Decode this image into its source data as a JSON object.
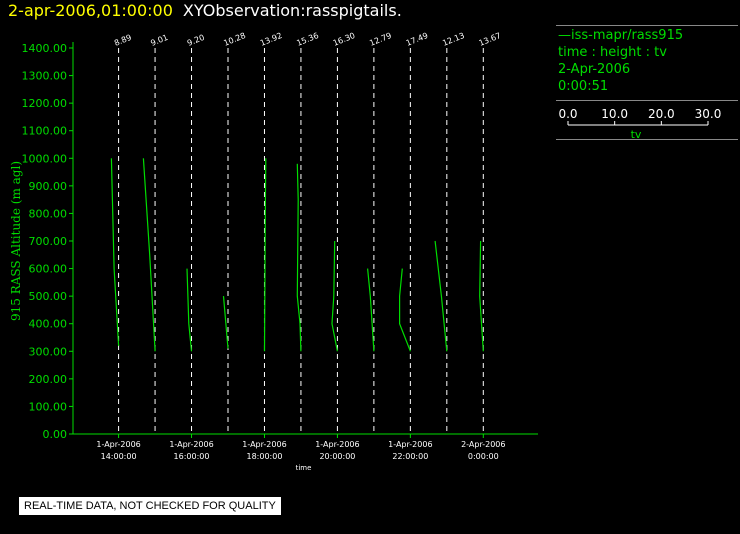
{
  "header": {
    "timestamp": "2-apr-2006,01:00:00",
    "title": "XYObservation:rasspigtails."
  },
  "legend": {
    "series": "—iss-mapr/rass915",
    "variables": "time : height : tv",
    "date": "2-Apr-2006",
    "time": "0:00:51",
    "scale_ticks": [
      "0.0",
      "10.0",
      "20.0",
      "30.0"
    ],
    "scale_values": [
      0,
      10,
      20,
      30
    ],
    "scale_label": "tv"
  },
  "footer": {
    "notice": "REAL-TIME DATA, NOT CHECKED FOR QUALITY"
  },
  "colors": {
    "axis": "#00dd00",
    "data": "#00dd00",
    "timestamp": "#ffff00",
    "title": "#ffffff",
    "dash": "#ffffff"
  },
  "chart_data": {
    "type": "line",
    "ylabel": "915 RASS Altitude (m agl)",
    "xlabel": "time",
    "ylim": [
      0,
      1400
    ],
    "yticks": [
      "0.00",
      "100.00",
      "200.00",
      "300.00",
      "400.00",
      "500.00",
      "600.00",
      "700.00",
      "800.00",
      "900.00",
      "1000.00",
      "1100.00",
      "1200.00",
      "1300.00",
      "1400.00"
    ],
    "xlim": [
      "2006-04-01 12:45",
      "2006-04-02 01:30"
    ],
    "xticks": [
      {
        "t": "2006-04-01 14:00",
        "line1": "1-Apr-2006",
        "line2": "14:00:00"
      },
      {
        "t": "2006-04-01 16:00",
        "line1": "1-Apr-2006",
        "line2": "16:00:00"
      },
      {
        "t": "2006-04-01 18:00",
        "line1": "1-Apr-2006",
        "line2": "18:00:00"
      },
      {
        "t": "2006-04-01 20:00",
        "line1": "1-Apr-2006",
        "line2": "20:00:00"
      },
      {
        "t": "2006-04-01 22:00",
        "line1": "1-Apr-2006",
        "line2": "22:00:00"
      },
      {
        "t": "2006-04-02 00:00",
        "line1": "2-Apr-2006",
        "line2": "0:00:00"
      }
    ],
    "profiles": [
      {
        "t": "2006-04-01 14:00",
        "label": "8.89",
        "points": [
          [
            -0.8,
            1000
          ],
          [
            -0.5,
            600
          ],
          [
            0,
            320
          ]
        ]
      },
      {
        "t": "2006-04-01 15:00",
        "label": "9.01",
        "points": [
          [
            -1.3,
            1000
          ],
          [
            -0.6,
            650
          ],
          [
            0,
            300
          ]
        ]
      },
      {
        "t": "2006-04-01 16:00",
        "label": "9.20",
        "points": [
          [
            -0.5,
            600
          ],
          [
            -0.3,
            400
          ],
          [
            0,
            300
          ]
        ]
      },
      {
        "t": "2006-04-01 17:00",
        "label": "10.28",
        "points": [
          [
            -0.5,
            500
          ],
          [
            0,
            310
          ]
        ]
      },
      {
        "t": "2006-04-01 18:00",
        "label": "13.92",
        "points": [
          [
            0,
            300
          ],
          [
            0.05,
            550
          ],
          [
            0.1,
            850
          ],
          [
            0.15,
            1000
          ]
        ]
      },
      {
        "t": "2006-04-01 19:00",
        "label": "15.36",
        "points": [
          [
            -0.4,
            980
          ],
          [
            -0.3,
            850
          ],
          [
            -0.4,
            500
          ],
          [
            -0.1,
            400
          ],
          [
            0,
            300
          ]
        ]
      },
      {
        "t": "2006-04-01 20:00",
        "label": "16.30",
        "points": [
          [
            -0.3,
            700
          ],
          [
            -0.4,
            500
          ],
          [
            -0.6,
            400
          ],
          [
            0,
            300
          ]
        ]
      },
      {
        "t": "2006-04-01 21:00",
        "label": "12.79",
        "points": [
          [
            -0.7,
            600
          ],
          [
            -0.4,
            500
          ],
          [
            -0.2,
            400
          ],
          [
            0,
            300
          ]
        ]
      },
      {
        "t": "2006-04-01 22:00",
        "label": "17.49",
        "points": [
          [
            -0.9,
            600
          ],
          [
            -1.2,
            500
          ],
          [
            -1.2,
            400
          ],
          [
            0,
            300
          ]
        ]
      },
      {
        "t": "2006-04-01 23:00",
        "label": "12.13",
        "points": [
          [
            -1.3,
            700
          ],
          [
            -0.6,
            500
          ],
          [
            0,
            300
          ]
        ]
      },
      {
        "t": "2006-04-02 00:00",
        "label": "13.67",
        "points": [
          [
            -0.3,
            700
          ],
          [
            -0.4,
            500
          ],
          [
            -0.2,
            400
          ],
          [
            0,
            300
          ]
        ]
      }
    ]
  }
}
